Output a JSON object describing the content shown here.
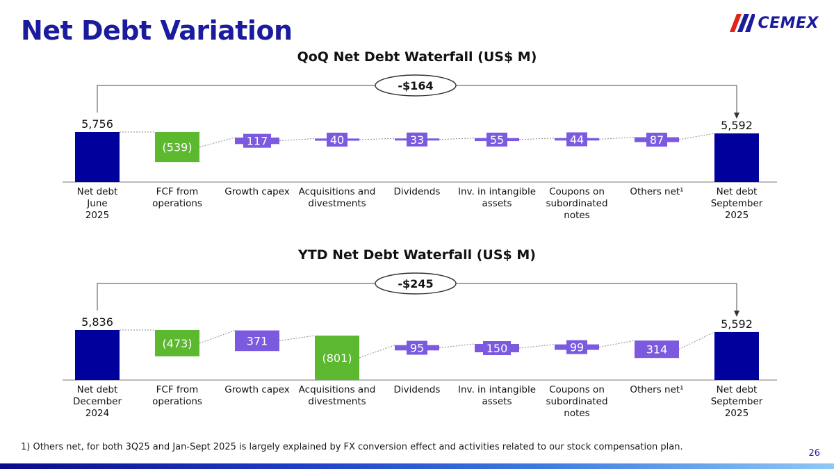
{
  "page": {
    "title": "Net Debt Variation",
    "footnote": "1) Others net, for both 3Q25 and Jan-Sept 2025 is largely explained by FX conversion effect and activities related to our stock compensation plan.",
    "page_number": "26"
  },
  "logo": {
    "text": "CEMEX"
  },
  "colors": {
    "title": "#1b1b9e",
    "total_bar": "#00009c",
    "fcf_bar": "#5cb82f",
    "other_bar": "#7b5ae0",
    "connector": "#8a8a8a"
  },
  "chart_data": [
    {
      "type": "bar",
      "subtype": "waterfall",
      "title": "QoQ Net Debt Waterfall (US$ M)",
      "categories": [
        [
          "Net debt",
          "June",
          "2025"
        ],
        [
          "FCF from",
          "operations"
        ],
        [
          "Growth capex"
        ],
        [
          "Acquisitions and",
          "divestments"
        ],
        [
          "Dividends"
        ],
        [
          "Inv. in intangible",
          "assets"
        ],
        [
          "Coupons on",
          "subordinated",
          "notes"
        ],
        [
          "Others net¹"
        ],
        [
          "Net debt",
          "September",
          "2025"
        ]
      ],
      "values": [
        5756,
        -539,
        117,
        40,
        33,
        55,
        44,
        87,
        5592
      ],
      "value_labels": [
        "5,756",
        "(539)",
        "117",
        "40",
        "33",
        "55",
        "44",
        "87",
        "5,592"
      ],
      "bar_kind": [
        "total",
        "fcf",
        "delta",
        "delta",
        "delta",
        "delta",
        "delta",
        "delta",
        "total"
      ],
      "change_label": "-$164"
    },
    {
      "type": "bar",
      "subtype": "waterfall",
      "title": "YTD Net Debt Waterfall (US$ M)",
      "categories": [
        [
          "Net debt",
          "December",
          "2024"
        ],
        [
          "FCF from",
          "operations"
        ],
        [
          "Growth capex"
        ],
        [
          "Acquisitions and",
          "divestments"
        ],
        [
          "Dividends"
        ],
        [
          "Inv. in intangible",
          "assets"
        ],
        [
          "Coupons on",
          "subordinated",
          "notes"
        ],
        [
          "Others net¹"
        ],
        [
          "Net debt",
          "September",
          "2025"
        ]
      ],
      "values": [
        5836,
        -473,
        371,
        -801,
        95,
        150,
        99,
        314,
        5592
      ],
      "value_labels": [
        "5,836",
        "(473)",
        "371",
        "(801)",
        "95",
        "150",
        "99",
        "314",
        "5,592"
      ],
      "bar_kind": [
        "total",
        "fcf",
        "delta",
        "fcf",
        "delta",
        "delta",
        "delta",
        "delta",
        "total"
      ],
      "change_label": "-$245"
    }
  ]
}
